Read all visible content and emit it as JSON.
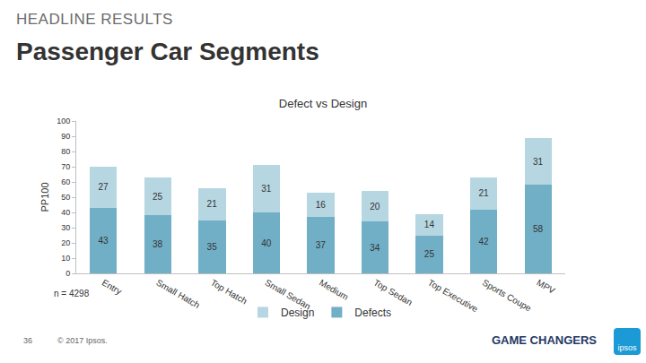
{
  "header": {
    "kicker": "HEADLINE RESULTS",
    "title": "Passenger Car Segments"
  },
  "chart_data": {
    "type": "bar",
    "stacked": true,
    "title": "Defect vs Design",
    "ylabel": "PP100",
    "categories": [
      "Entry",
      "Small Hatch",
      "Top Hatch",
      "Small Sedan",
      "Medium",
      "Top Sedan",
      "Top Executive",
      "Sports Coupe",
      "MPV"
    ],
    "series": [
      {
        "name": "Defects",
        "color": "#71afc6",
        "values": [
          43,
          38,
          35,
          40,
          37,
          34,
          25,
          42,
          58
        ]
      },
      {
        "name": "Design",
        "color": "#b6d6e2",
        "values": [
          27,
          25,
          21,
          31,
          16,
          20,
          14,
          21,
          31
        ]
      }
    ],
    "ylim": [
      0,
      100
    ],
    "yticks": [
      0,
      10,
      20,
      30,
      40,
      50,
      60,
      70,
      80,
      90,
      100
    ],
    "grid": false,
    "legend": "bottom",
    "data_labels": true
  },
  "footer": {
    "note": "n = 4298",
    "page": "36",
    "copyright": "© 2017 Ipsos.",
    "tagline": "GAME CHANGERS",
    "logo": "ipsos"
  }
}
